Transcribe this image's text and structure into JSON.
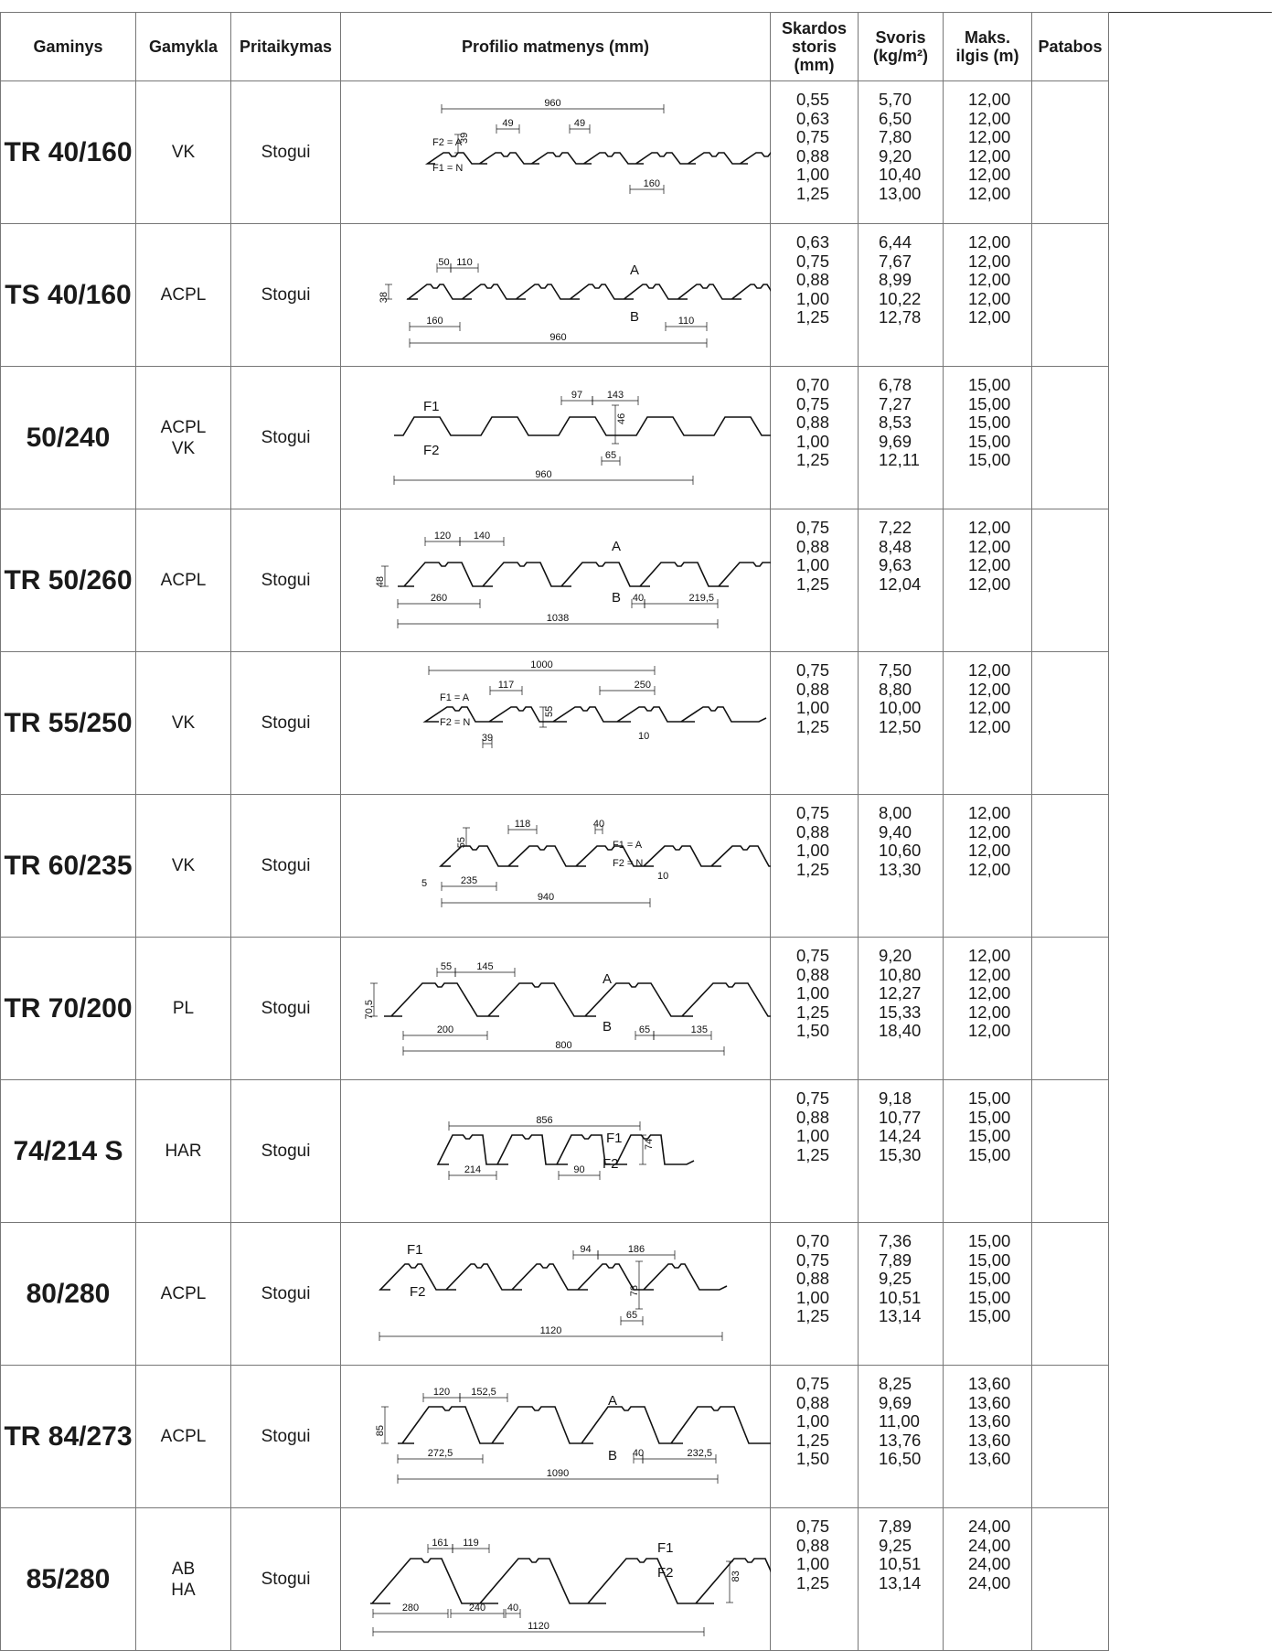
{
  "headers": {
    "product": "Gaminys",
    "factory": "Gamykla",
    "usage": "Pritaikymas",
    "profile": "Profilio matmenys (mm)",
    "thickness_l1": "Skardos",
    "thickness_l2": "storis",
    "thickness_l3": "(mm)",
    "weight_l1": "Svoris",
    "weight_l2": "(kg/m²)",
    "length_l1": "Maks.",
    "length_l2": "ilgis (m)",
    "flashings": "Patabos"
  },
  "rows": [
    {
      "product": "TR 40/160",
      "factory1": "VK",
      "factory2": "",
      "usage": "Stogui",
      "thickness": [
        "0,55",
        "0,63",
        "0,75",
        "0,88",
        "1,00",
        "1,25"
      ],
      "weight": [
        "5,70",
        "6,50",
        "7,80",
        "9,20",
        "10,40",
        "13,00"
      ],
      "length": [
        "12,00",
        "12,00",
        "12,00",
        "12,00",
        "12,00",
        "12,00"
      ],
      "dims": {
        "overall": "960",
        "rib1": "49",
        "rib2": "49",
        "h": "39",
        "pitch": "160",
        "fa": "F2 = A",
        "fb": "F1 = N"
      }
    },
    {
      "product": "TS 40/160",
      "factory1": "ACPL",
      "factory2": "",
      "usage": "Stogui",
      "thickness": [
        "0,63",
        "0,75",
        "0,88",
        "1,00",
        "1,25"
      ],
      "weight": [
        "6,44",
        "7,67",
        "8,99",
        "10,22",
        "12,78"
      ],
      "length": [
        "12,00",
        "12,00",
        "12,00",
        "12,00",
        "12,00"
      ],
      "dims": {
        "top": "50",
        "gap": "110",
        "h": "38",
        "pitch": "160",
        "overall": "960",
        "end": "110",
        "a": "A",
        "b": "B"
      }
    },
    {
      "product": "50/240",
      "factory1": "ACPL",
      "factory2": "VK",
      "usage": "Stogui",
      "thickness": [
        "0,70",
        "0,75",
        "0,88",
        "1,00",
        "1,25"
      ],
      "weight": [
        "6,78",
        "7,27",
        "8,53",
        "9,69",
        "12,11"
      ],
      "length": [
        "15,00",
        "15,00",
        "15,00",
        "15,00",
        "15,00"
      ],
      "dims": {
        "top": "97",
        "gap": "143",
        "h": "46",
        "bottom": "65",
        "overall": "960",
        "f1": "F1",
        "f2": "F2"
      }
    },
    {
      "product": "TR 50/260",
      "factory1": "ACPL",
      "factory2": "",
      "usage": "Stogui",
      "thickness": [
        "0,75",
        "0,88",
        "1,00",
        "1,25"
      ],
      "weight": [
        "7,22",
        "8,48",
        "9,63",
        "12,04"
      ],
      "length": [
        "12,00",
        "12,00",
        "12,00",
        "12,00"
      ],
      "dims": {
        "top": "120",
        "gap": "140",
        "h": "48",
        "pitch": "260",
        "overall": "1038",
        "bottom": "40",
        "end": "219,5",
        "a": "A",
        "b": "B"
      }
    },
    {
      "product": "TR 55/250",
      "factory1": "VK",
      "factory2": "",
      "usage": "Stogui",
      "thickness": [
        "0,75",
        "0,88",
        "1,00",
        "1,25"
      ],
      "weight": [
        "7,50",
        "8,80",
        "10,00",
        "12,50"
      ],
      "length": [
        "12,00",
        "12,00",
        "12,00",
        "12,00"
      ],
      "dims": {
        "overall": "1000",
        "top": "117",
        "pitch": "250",
        "bottom": "39",
        "h": "55",
        "lap": "10",
        "fa": "F1 = A",
        "fb": "F2 = N"
      }
    },
    {
      "product": "TR 60/235",
      "factory1": "VK",
      "factory2": "",
      "usage": "Stogui",
      "thickness": [
        "0,75",
        "0,88",
        "1,00",
        "1,25"
      ],
      "weight": [
        "8,00",
        "9,40",
        "10,60",
        "13,30"
      ],
      "length": [
        "12,00",
        "12,00",
        "12,00",
        "12,00"
      ],
      "dims": {
        "h": "55",
        "top": "118",
        "bottom": "40",
        "pitch": "235",
        "overall": "940",
        "edge": "5",
        "lap": "10",
        "fa": "F1 = A",
        "fb": "F2 = N"
      }
    },
    {
      "product": "TR 70/200",
      "factory1": "PL",
      "factory2": "",
      "usage": "Stogui",
      "thickness": [
        "0,75",
        "0,88",
        "1,00",
        "1,25",
        "1,50"
      ],
      "weight": [
        "9,20",
        "10,80",
        "12,27",
        "15,33",
        "18,40"
      ],
      "length": [
        "12,00",
        "12,00",
        "12,00",
        "12,00",
        "12,00"
      ],
      "dims": {
        "top": "55",
        "gap": "145",
        "h": "70,5",
        "pitch": "200",
        "overall": "800",
        "bottom": "65",
        "end": "135",
        "a": "A",
        "b": "B"
      }
    },
    {
      "product": "74/214 S",
      "factory1": "HAR",
      "factory2": "",
      "usage": "Stogui",
      "thickness": [
        "0,75",
        "0,88",
        "1,00",
        "1,25"
      ],
      "weight": [
        "9,18",
        "10,77",
        "14,24",
        "15,30"
      ],
      "length": [
        "15,00",
        "15,00",
        "15,00",
        "15,00"
      ],
      "dims": {
        "overall": "856",
        "pitch": "214",
        "bottom": "90",
        "h": "74",
        "f1": "F1",
        "f2": "F2"
      }
    },
    {
      "product": "80/280",
      "factory1": "ACPL",
      "factory2": "",
      "usage": "Stogui",
      "thickness": [
        "0,70",
        "0,75",
        "0,88",
        "1,00",
        "1,25"
      ],
      "weight": [
        "7,36",
        "7,89",
        "9,25",
        "10,51",
        "13,14"
      ],
      "length": [
        "15,00",
        "15,00",
        "15,00",
        "15,00",
        "15,00"
      ],
      "dims": {
        "top": "94",
        "gap": "186",
        "h": "78",
        "bottom": "65",
        "overall": "1120",
        "f1": "F1",
        "f2": "F2"
      }
    },
    {
      "product": "TR 84/273",
      "factory1": "ACPL",
      "factory2": "",
      "usage": "Stogui",
      "thickness": [
        "0,75",
        "0,88",
        "1,00",
        "1,25",
        "1,50"
      ],
      "weight": [
        "8,25",
        "9,69",
        "11,00",
        "13,76",
        "16,50"
      ],
      "length": [
        "13,60",
        "13,60",
        "13,60",
        "13,60",
        "13,60"
      ],
      "dims": {
        "top": "120",
        "gap": "152,5",
        "h": "85",
        "pitch": "272,5",
        "overall": "1090",
        "bottom": "40",
        "end": "232,5",
        "a": "A",
        "b": "B"
      }
    },
    {
      "product": "85/280",
      "factory1": "AB",
      "factory2": "HA",
      "usage": "Stogui",
      "thickness": [
        "0,75",
        "0,88",
        "1,00",
        "1,25"
      ],
      "weight": [
        "7,89",
        "9,25",
        "10,51",
        "13,14"
      ],
      "length": [
        "24,00",
        "24,00",
        "24,00",
        "24,00"
      ],
      "dims": {
        "top": "161",
        "gap": "119",
        "pitch": "280",
        "mid": "240",
        "bottom": "40",
        "overall": "1120",
        "h": "83",
        "f1": "F1",
        "f2": "F2"
      }
    }
  ]
}
